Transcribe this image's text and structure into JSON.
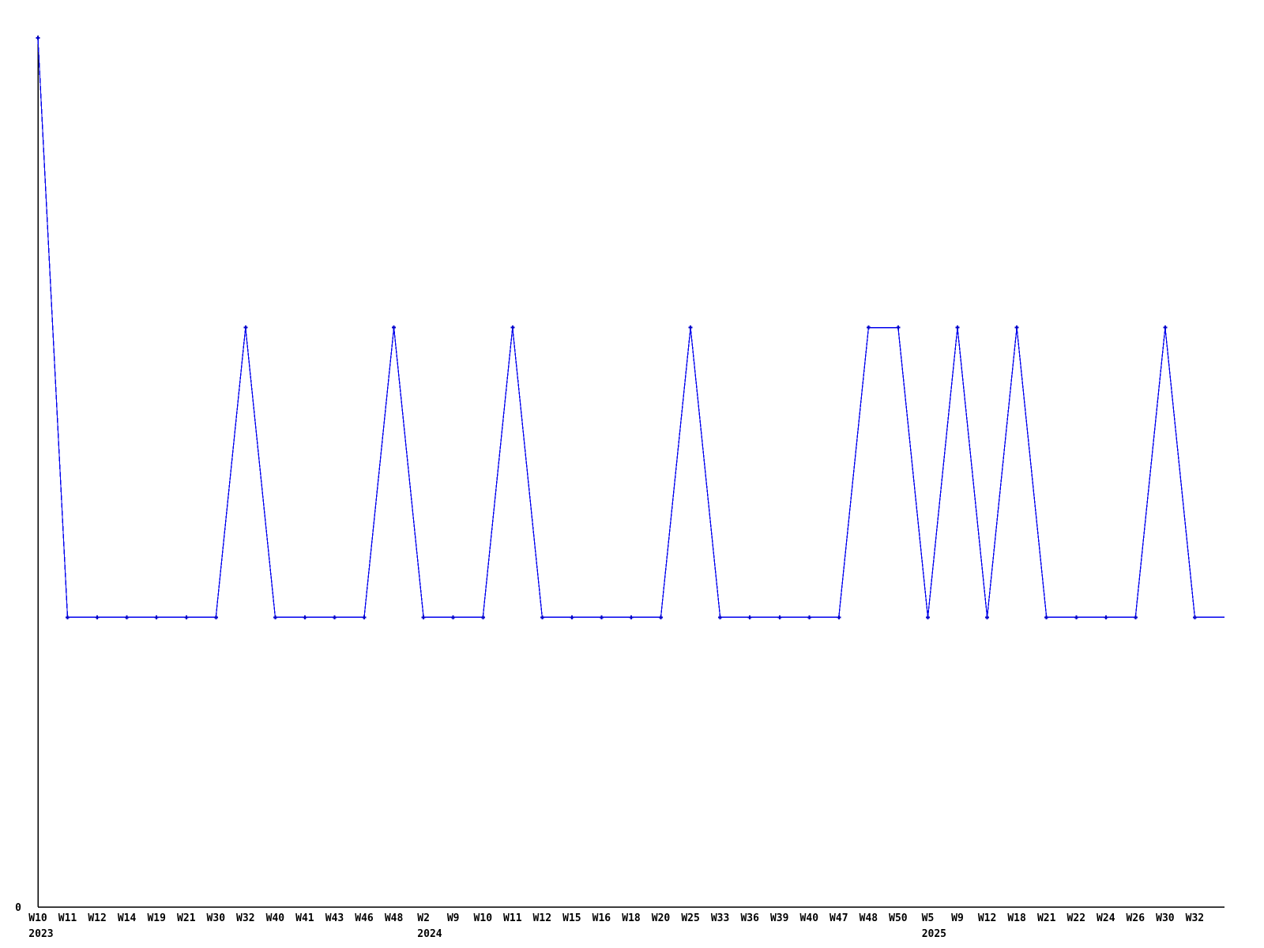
{
  "chart_data": {
    "type": "line",
    "title": "",
    "xlabel": "",
    "ylabel": "",
    "categories": [
      "W10",
      "W11",
      "W12",
      "W14",
      "W19",
      "W21",
      "W30",
      "W32",
      "W40",
      "W41",
      "W43",
      "W46",
      "W48",
      "W2",
      "W9",
      "W10",
      "W11",
      "W12",
      "W15",
      "W16",
      "W18",
      "W20",
      "W25",
      "W33",
      "W36",
      "W39",
      "W40",
      "W47",
      "W48",
      "W50",
      "W5",
      "W9",
      "W12",
      "W18",
      "W21",
      "W22",
      "W24",
      "W26",
      "W30",
      "W32"
    ],
    "values": [
      3,
      1,
      1,
      1,
      1,
      1,
      1,
      2,
      1,
      1,
      1,
      1,
      2,
      1,
      1,
      1,
      2,
      1,
      1,
      1,
      1,
      1,
      2,
      1,
      1,
      1,
      1,
      1,
      2,
      2,
      1,
      2,
      1,
      2,
      1,
      1,
      1,
      1,
      2,
      1
    ],
    "year_markers": [
      {
        "index": 0,
        "label": "2023"
      },
      {
        "index": 13,
        "label": "2024"
      },
      {
        "index": 30,
        "label": "2025"
      }
    ],
    "y_axis_tick_labels": [
      "0"
    ],
    "ylim": [
      0,
      3
    ],
    "grid": false,
    "legend_position": "none",
    "line_color": "#0000ee",
    "marker_color": "#0000cc",
    "marker_style": "plus",
    "axis_color": "#000000",
    "background_color": "#ffffff",
    "line_extends_to_right_edge": true
  }
}
